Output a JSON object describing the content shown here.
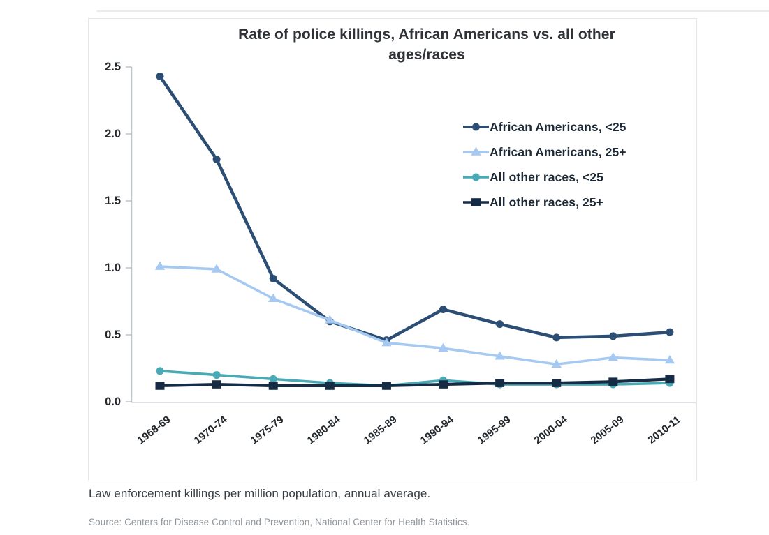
{
  "page": {
    "caption": "Law enforcement killings per million population, annual average.",
    "source": "Source: Centers for Disease Control and Prevention, National Center for Health Statistics."
  },
  "chart_data": {
    "type": "line",
    "title": "Rate of police killings, African Americans vs. all other ages/races",
    "xlabel": "",
    "ylabel": "",
    "ylim": [
      0,
      2.5
    ],
    "grid": false,
    "legend_position": "upper right",
    "yticks": [
      "0.0",
      "0.5",
      "1.0",
      "1.5",
      "2.0",
      "2.5"
    ],
    "categories": [
      "1968-69",
      "1970-74",
      "1975-79",
      "1980-84",
      "1985-89",
      "1990-94",
      "1995-99",
      "2000-04",
      "2005-09",
      "2010-11"
    ],
    "series": [
      {
        "name": "African Americans, <25",
        "marker": "circle",
        "color": "#2c4e74",
        "values": [
          2.43,
          1.81,
          0.92,
          0.6,
          0.46,
          0.69,
          0.58,
          0.48,
          0.49,
          0.52
        ]
      },
      {
        "name": "African Americans, 25+",
        "marker": "triangle",
        "color": "#a6c9f1",
        "values": [
          1.01,
          0.99,
          0.77,
          0.61,
          0.44,
          0.4,
          0.34,
          0.28,
          0.33,
          0.31
        ]
      },
      {
        "name": "All other races, <25",
        "marker": "circle",
        "color": "#49aab6",
        "values": [
          0.23,
          0.2,
          0.17,
          0.14,
          0.12,
          0.16,
          0.13,
          0.13,
          0.13,
          0.14
        ]
      },
      {
        "name": "All other races, 25+",
        "marker": "square",
        "color": "#152c44",
        "values": [
          0.12,
          0.13,
          0.12,
          0.12,
          0.12,
          0.13,
          0.14,
          0.14,
          0.15,
          0.17
        ]
      }
    ]
  }
}
